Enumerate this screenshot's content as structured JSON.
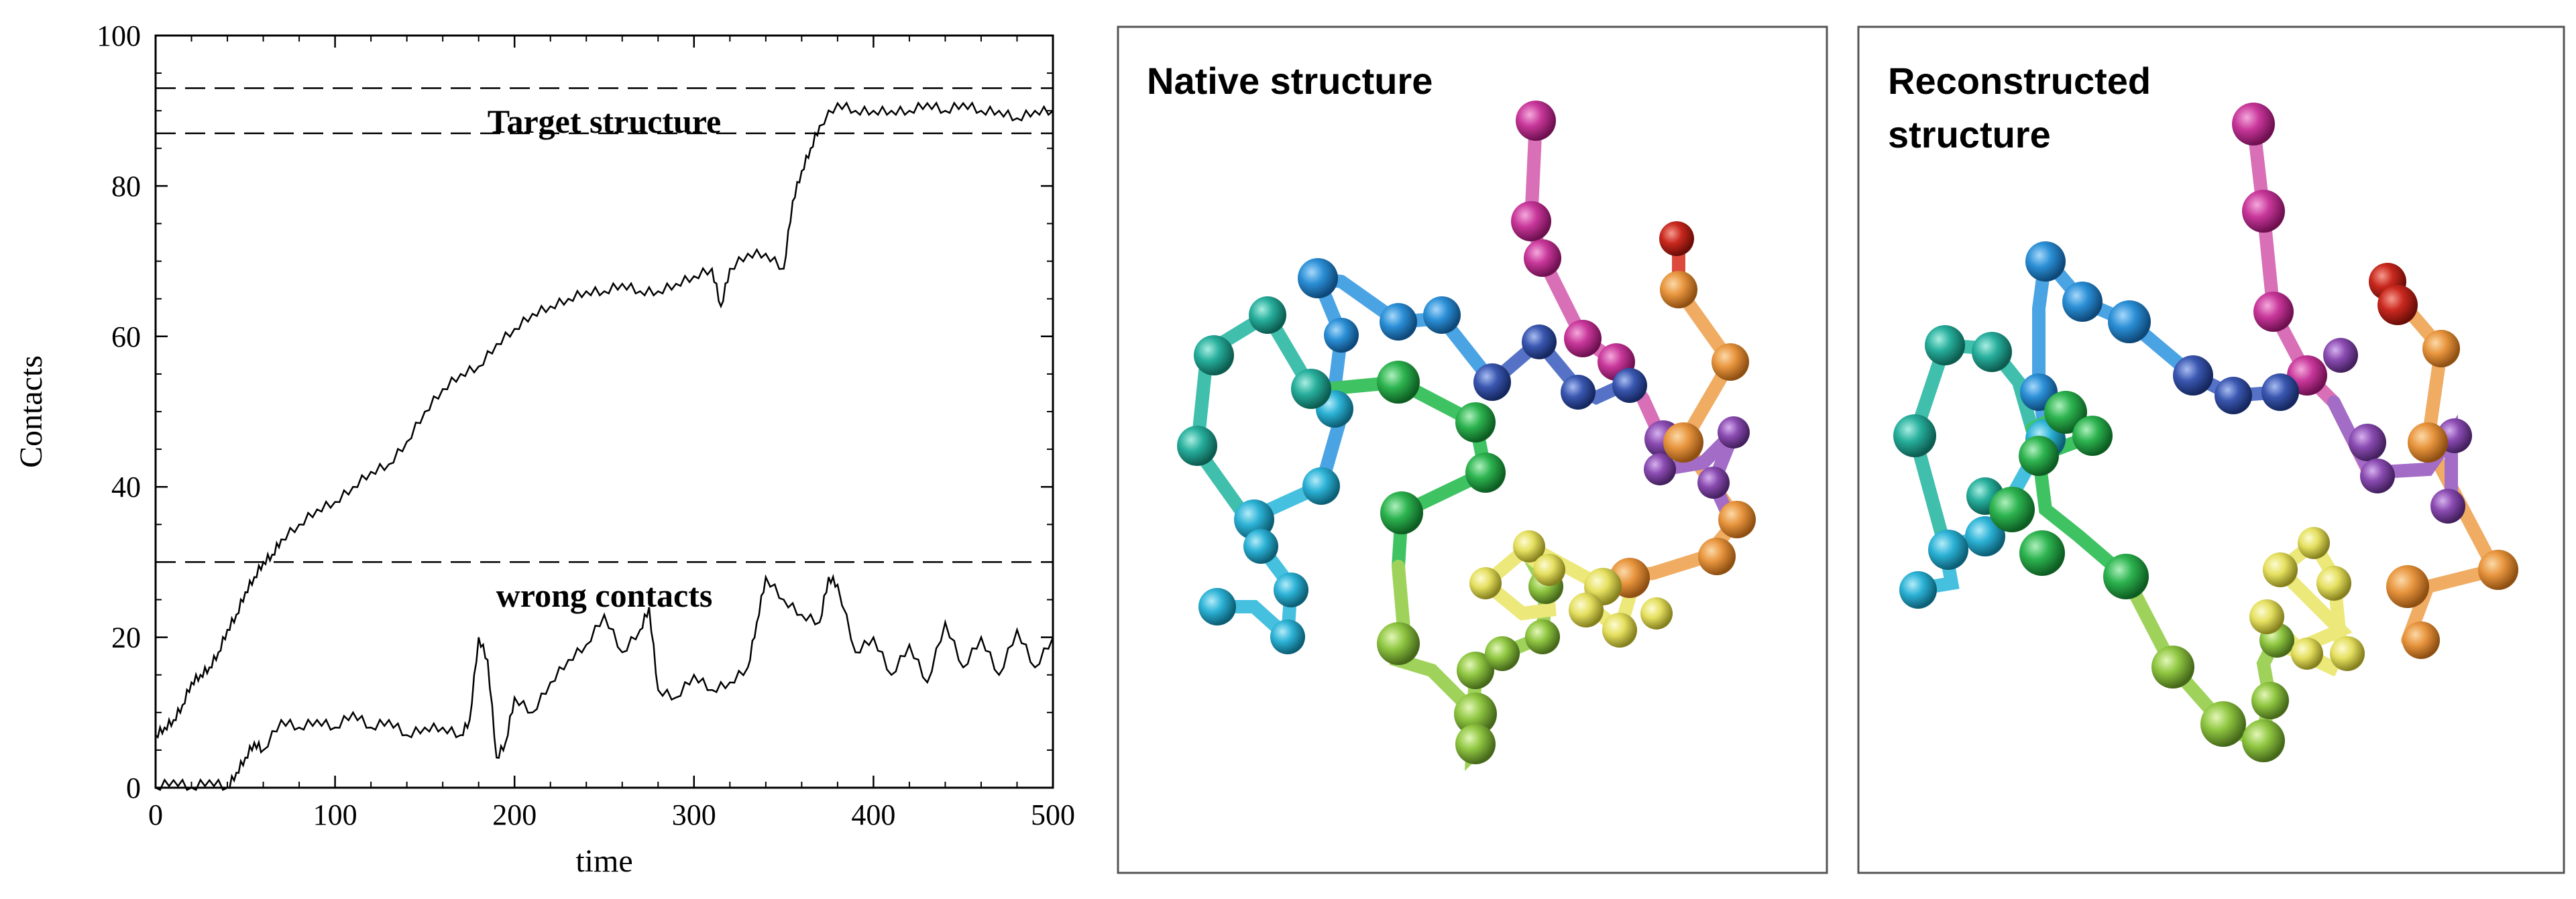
{
  "chart_data": {
    "type": "line",
    "title": "",
    "xlabel": "time",
    "ylabel": "Contacts",
    "xlim": [
      0,
      500
    ],
    "ylim": [
      0,
      100
    ],
    "xticks": [
      0,
      100,
      200,
      300,
      400,
      500
    ],
    "yticks": [
      0,
      20,
      40,
      60,
      80,
      100
    ],
    "grid": false,
    "annotations": [
      {
        "text": "Target structure",
        "x": 250,
        "y": 88.5
      },
      {
        "text": "wrong contacts",
        "x": 250,
        "y": 25.5
      }
    ],
    "reference_lines": [
      {
        "y": 93,
        "style": "dashed"
      },
      {
        "y": 87,
        "style": "dashed"
      },
      {
        "y": 30,
        "style": "dashed"
      }
    ],
    "series": [
      {
        "color": "#000000",
        "x": [
          0,
          5,
          10,
          15,
          20,
          25,
          30,
          35,
          40,
          45,
          50,
          55,
          60,
          65,
          70,
          80,
          90,
          100,
          110,
          120,
          130,
          140,
          150,
          160,
          170,
          180,
          190,
          200,
          210,
          220,
          230,
          240,
          250,
          260,
          270,
          280,
          290,
          300,
          310,
          315,
          320,
          330,
          340,
          350,
          355,
          360,
          365,
          370,
          380,
          390,
          400,
          410,
          420,
          430,
          440,
          450,
          460,
          470,
          480,
          490,
          500
        ],
        "y": [
          7,
          8,
          9,
          11,
          14,
          15,
          16,
          18,
          21,
          23,
          26,
          28,
          30,
          31,
          33,
          35,
          37,
          38,
          40,
          42,
          43,
          46,
          50,
          53,
          55,
          56,
          59,
          61,
          63,
          64,
          65,
          66,
          66,
          67,
          66,
          66,
          67,
          68,
          69,
          64,
          69,
          71,
          71,
          69,
          78,
          82,
          85,
          88,
          91,
          90,
          90,
          90,
          90,
          91,
          90,
          91,
          90,
          90,
          89,
          90,
          90
        ]
      },
      {
        "color": "#000000",
        "x": [
          0,
          10,
          20,
          30,
          40,
          45,
          50,
          55,
          60,
          70,
          80,
          90,
          100,
          110,
          120,
          130,
          140,
          150,
          160,
          170,
          175,
          180,
          185,
          190,
          195,
          200,
          210,
          220,
          230,
          240,
          250,
          260,
          270,
          275,
          280,
          290,
          300,
          310,
          320,
          330,
          335,
          340,
          350,
          360,
          370,
          375,
          380,
          390,
          400,
          410,
          420,
          430,
          440,
          450,
          460,
          470,
          480,
          490,
          500
        ],
        "y": [
          0,
          1,
          0,
          1,
          0,
          2,
          4,
          6,
          5,
          9,
          8,
          9,
          8,
          10,
          8,
          9,
          7,
          8,
          8,
          7,
          9,
          20,
          17,
          4,
          6,
          12,
          10,
          14,
          17,
          19,
          23,
          18,
          21,
          24,
          13,
          12,
          15,
          13,
          14,
          16,
          22,
          28,
          25,
          23,
          22,
          28,
          27,
          18,
          20,
          15,
          19,
          14,
          22,
          16,
          20,
          15,
          21,
          16,
          20
        ]
      }
    ]
  },
  "panels": {
    "native_title": "Native structure",
    "reconstructed_title_line1": "Reconstructed",
    "reconstructed_title_line2": "structure"
  },
  "colors": {
    "magenta": "#c8379a",
    "red": "#c9281e",
    "orange": "#e8953e",
    "purple": "#8a4bb1",
    "navy": "#3a57b0",
    "blue": "#2b8fd6",
    "cyan": "#2cb2d6",
    "teal": "#27ae9c",
    "green": "#2db34f",
    "lime": "#8fc641",
    "yellow": "#e5e060"
  }
}
